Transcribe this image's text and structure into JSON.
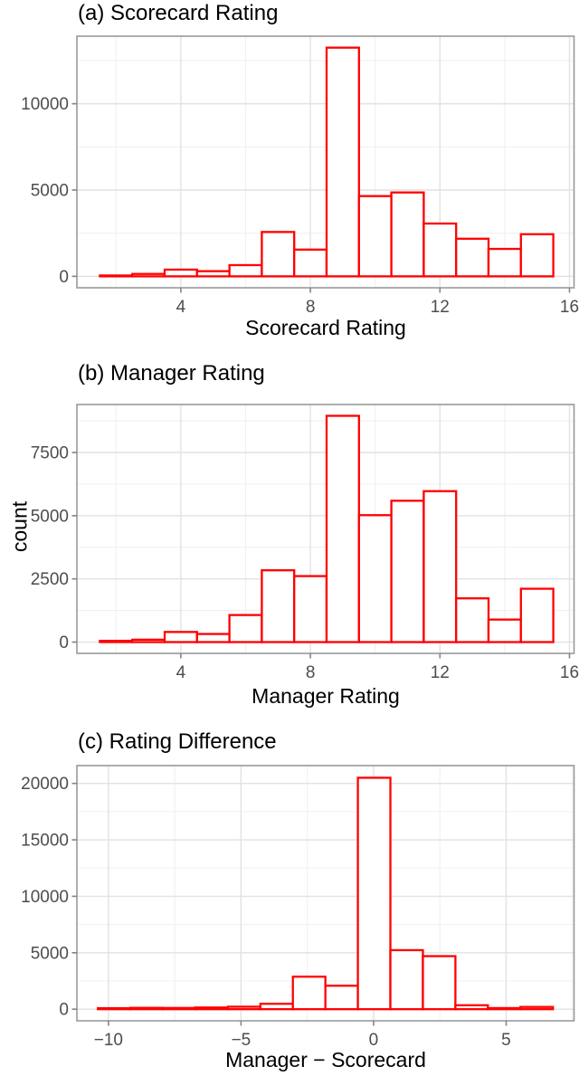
{
  "figure": {
    "background": "#ffffff",
    "bar_stroke_color": "#ff0000",
    "bar_fill_color": "#ffffff",
    "panel_border_color": "#999999",
    "major_grid_color": "#e2e2e2",
    "minor_grid_color": "#f0f0f0",
    "tick_color": "#858585",
    "tick_label_color": "#4d4d4d",
    "title_color": "#000000"
  },
  "chart_data": [
    {
      "type": "bar",
      "subtype": "histogram",
      "title": "(a) Scorecard Rating",
      "xlabel": "Scorecard Rating",
      "ylabel": "",
      "bin_start": 1.5,
      "bin_width": 1,
      "bin_centers": [
        2,
        3,
        4,
        5,
        6,
        7,
        8,
        9,
        10,
        11,
        12,
        13,
        14,
        15
      ],
      "values": [
        50,
        140,
        390,
        300,
        650,
        2570,
        1550,
        13250,
        4650,
        4860,
        3060,
        2180,
        1590,
        2440
      ],
      "x_ticks": [
        4,
        8,
        12,
        16
      ],
      "x_tick_labels": [
        "4",
        "8",
        "12",
        "16"
      ],
      "x_minor": [
        2,
        6,
        10,
        14
      ],
      "y_ticks": [
        0,
        5000,
        10000
      ],
      "y_tick_labels": [
        "0",
        "5000",
        "10000"
      ],
      "y_minor": [
        2500,
        7500,
        12500
      ],
      "xlim": [
        0.79,
        16.14
      ],
      "ylim": [
        -662,
        13913
      ],
      "grid": true,
      "legend": "none"
    },
    {
      "type": "bar",
      "subtype": "histogram",
      "title": "(b) Manager Rating",
      "xlabel": "Manager Rating",
      "ylabel": "count",
      "bin_start": 1.5,
      "bin_width": 1,
      "bin_centers": [
        2,
        3,
        4,
        5,
        6,
        7,
        8,
        9,
        10,
        11,
        12,
        13,
        14,
        15
      ],
      "values": [
        50,
        95,
        400,
        320,
        1070,
        2840,
        2610,
        8950,
        5020,
        5590,
        5970,
        1730,
        890,
        2110
      ],
      "x_ticks": [
        4,
        8,
        12,
        16
      ],
      "x_tick_labels": [
        "4",
        "8",
        "12",
        "16"
      ],
      "x_minor": [
        2,
        6,
        10,
        14
      ],
      "y_ticks": [
        0,
        2500,
        5000,
        7500
      ],
      "y_tick_labels": [
        "0",
        "2500",
        "5000",
        "7500"
      ],
      "y_minor": [
        1250,
        3750,
        6250,
        8750
      ],
      "xlim": [
        0.79,
        16.14
      ],
      "ylim": [
        -447,
        9397
      ],
      "grid": true,
      "legend": "none"
    },
    {
      "type": "bar",
      "subtype": "histogram",
      "title": "(c) Rating Difference",
      "xlabel": "Manager − Scorecard",
      "ylabel": "",
      "bin_start": -10.4,
      "bin_width": 1.226,
      "bin_centers": [
        -9.79,
        -8.56,
        -7.34,
        -6.11,
        -4.88,
        -3.66,
        -2.43,
        -1.2,
        0.02,
        1.25,
        2.48,
        3.7,
        4.93,
        6.15
      ],
      "values": [
        90,
        120,
        110,
        150,
        220,
        480,
        2880,
        2080,
        20500,
        5230,
        4700,
        350,
        100,
        200
      ],
      "x_ticks": [
        -10,
        -5,
        0,
        5
      ],
      "x_tick_labels": [
        "−10",
        "−5",
        "0",
        "5"
      ],
      "x_minor": [
        -7.5,
        -2.5,
        2.5,
        7.5
      ],
      "y_ticks": [
        0,
        5000,
        10000,
        15000,
        20000
      ],
      "y_tick_labels": [
        "0",
        "5000",
        "10000",
        "15000",
        "20000"
      ],
      "y_minor": [
        2500,
        7500,
        12500,
        17500
      ],
      "xlim": [
        -11.19,
        7.56
      ],
      "ylim": [
        -1027,
        21577
      ],
      "grid": true,
      "legend": "none"
    }
  ]
}
